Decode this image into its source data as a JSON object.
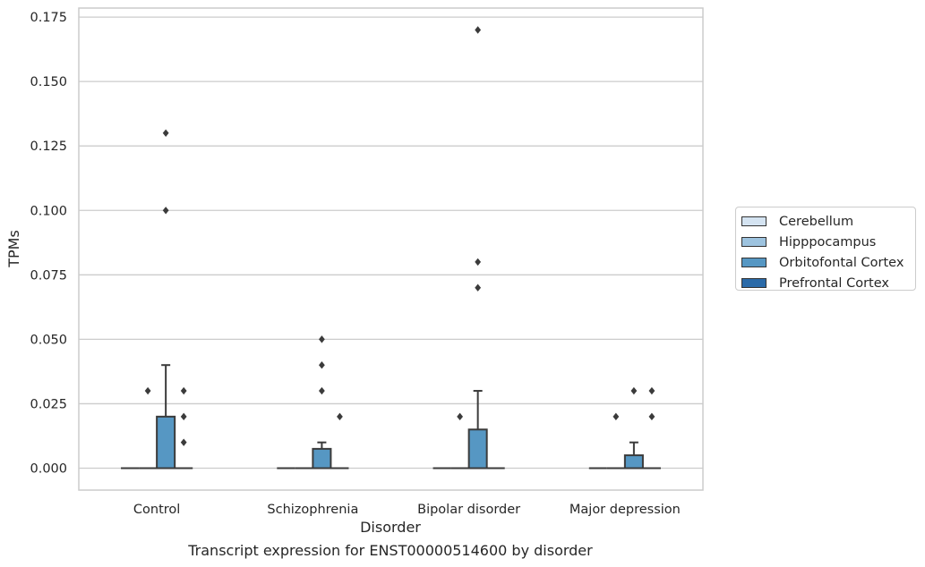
{
  "chart_data": {
    "type": "box",
    "title": "",
    "xlabel": "Disorder",
    "ylabel": "TPMs",
    "caption": "Transcript expression for ENST00000514600 by disorder",
    "categories": [
      "Control",
      "Schizophrenia",
      "Bipolar disorder",
      "Major depression"
    ],
    "ylim": [
      -0.0085,
      0.1785
    ],
    "yticks": [
      0.0,
      0.025,
      0.05,
      0.075,
      0.1,
      0.125,
      0.15,
      0.175
    ],
    "ytick_labels": [
      "0.000",
      "0.025",
      "0.050",
      "0.075",
      "0.100",
      "0.125",
      "0.150",
      "0.175"
    ],
    "grid": true,
    "legend_position": "right",
    "series": [
      {
        "name": "Cerebellum",
        "color": "#d4e3f1",
        "boxes": [
          {
            "q1": 0,
            "median": 0,
            "q3": 0,
            "whisker_low": 0,
            "whisker_high": 0,
            "outliers": []
          },
          {
            "q1": 0,
            "median": 0,
            "q3": 0,
            "whisker_low": 0,
            "whisker_high": 0,
            "outliers": []
          },
          {
            "q1": 0,
            "median": 0,
            "q3": 0,
            "whisker_low": 0,
            "whisker_high": 0,
            "outliers": []
          },
          {
            "q1": 0,
            "median": 0,
            "q3": 0,
            "whisker_low": 0,
            "whisker_high": 0,
            "outliers": []
          }
        ]
      },
      {
        "name": "Hipppocampus",
        "color": "#9dc3df",
        "boxes": [
          {
            "q1": 0,
            "median": 0,
            "q3": 0,
            "whisker_low": 0,
            "whisker_high": 0,
            "outliers": [
              0.03
            ]
          },
          {
            "q1": 0,
            "median": 0,
            "q3": 0,
            "whisker_low": 0,
            "whisker_high": 0,
            "outliers": []
          },
          {
            "q1": 0,
            "median": 0,
            "q3": 0,
            "whisker_low": 0,
            "whisker_high": 0,
            "outliers": [
              0.02
            ]
          },
          {
            "q1": 0,
            "median": 0,
            "q3": 0,
            "whisker_low": 0,
            "whisker_high": 0,
            "outliers": [
              0.02
            ]
          }
        ]
      },
      {
        "name": "Orbitofontal Cortex",
        "color": "#5697c3",
        "boxes": [
          {
            "q1": 0,
            "median": 0,
            "q3": 0.02,
            "whisker_low": 0,
            "whisker_high": 0.04,
            "outliers": [
              0.1,
              0.13
            ]
          },
          {
            "q1": 0,
            "median": 0,
            "q3": 0.0075,
            "whisker_low": 0,
            "whisker_high": 0.01,
            "outliers": [
              0.03,
              0.04,
              0.05
            ]
          },
          {
            "q1": 0,
            "median": 0,
            "q3": 0.015,
            "whisker_low": 0,
            "whisker_high": 0.03,
            "outliers": [
              0.07,
              0.08,
              0.17
            ]
          },
          {
            "q1": 0,
            "median": 0,
            "q3": 0.005,
            "whisker_low": 0,
            "whisker_high": 0.01,
            "outliers": [
              0.03
            ]
          }
        ]
      },
      {
        "name": "Prefrontal Cortex",
        "color": "#2a6aa8",
        "boxes": [
          {
            "q1": 0,
            "median": 0,
            "q3": 0,
            "whisker_low": 0,
            "whisker_high": 0,
            "outliers": [
              0.01,
              0.02,
              0.03
            ]
          },
          {
            "q1": 0,
            "median": 0,
            "q3": 0,
            "whisker_low": 0,
            "whisker_high": 0,
            "outliers": [
              0.02
            ]
          },
          {
            "q1": 0,
            "median": 0,
            "q3": 0,
            "whisker_low": 0,
            "whisker_high": 0,
            "outliers": []
          },
          {
            "q1": 0,
            "median": 0,
            "q3": 0,
            "whisker_low": 0,
            "whisker_high": 0,
            "outliers": [
              0.02,
              0.03
            ]
          }
        ]
      }
    ]
  }
}
